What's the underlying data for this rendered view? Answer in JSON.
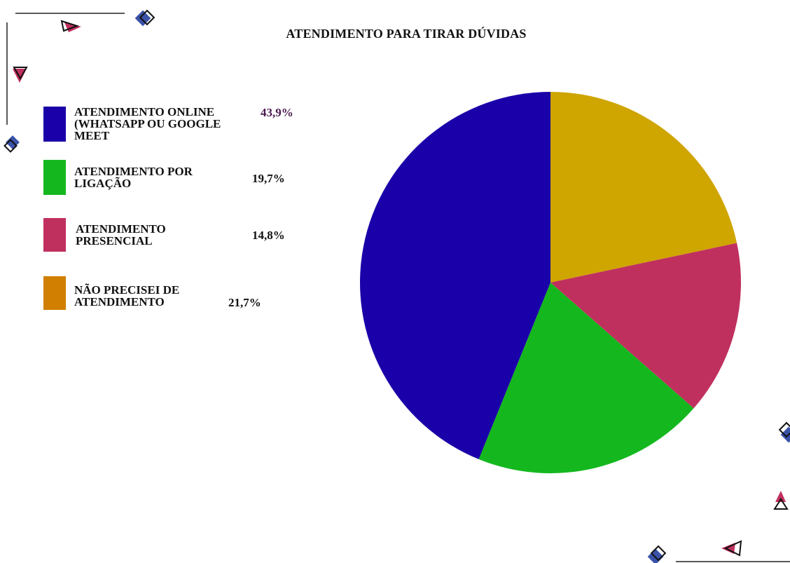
{
  "chart_data": {
    "type": "pie",
    "title": "ATENDIMENTO PARA TIRAR DÚVIDAS",
    "categories": [
      "ATENDIMENTO ONLINE\n(WHATSAPP OU GOOGLE\nMEET",
      "ATENDIMENTO POR\nLIGAÇÃO",
      "ATENDIMENTO\nPRESENCIAL",
      "NÃO PRECISEI DE\nATENDIMENTO"
    ],
    "values": [
      43.9,
      19.7,
      14.8,
      21.7
    ],
    "value_labels": [
      "43,9%",
      "19,7%",
      "14,8%",
      "21,7%"
    ],
    "legend_colors": [
      "#1a00a8",
      "#14b81e",
      "#c0305e",
      "#d07f00"
    ],
    "slice_colors": [
      "#1a00a8",
      "#14b81e",
      "#c0305e",
      "#cfa500"
    ],
    "value_label_colors": [
      "#4b1a4f",
      "#111111",
      "#111111",
      "#111111"
    ],
    "legend_placement": "left",
    "start_angle_deg": 0,
    "direction": "clockwise-from-top: slices drawn as 21,7%, 14,8%, 19,7%, 43,9%"
  }
}
